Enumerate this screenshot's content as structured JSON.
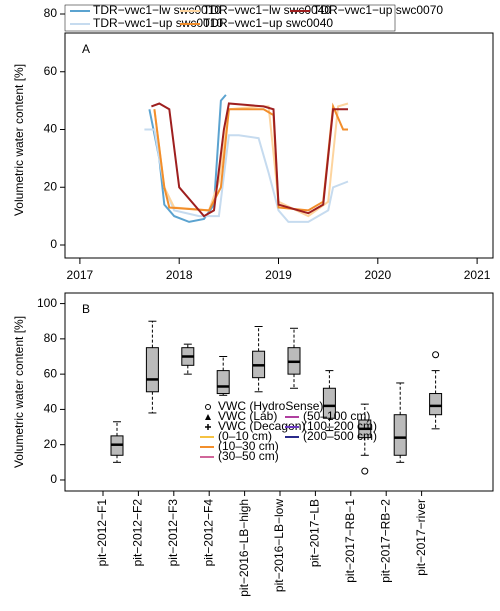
{
  "chart_data": [
    {
      "type": "line",
      "panel_label": "A",
      "y_label": "Volumetric water content [%]",
      "xlim": [
        2016.85,
        2021.16
      ],
      "xticks": [
        2017,
        2018,
        2019,
        2020,
        2021
      ],
      "ylim": [
        -4.5,
        80
      ],
      "yticks": [
        0,
        20,
        40,
        60,
        80
      ],
      "series": [
        {
          "name": "TDR−vwc1−lw swc0010",
          "color": "#5ba3d0",
          "x": [
            2017.7,
            2017.8,
            2017.85,
            2017.95,
            2018.1,
            2018.25,
            2018.35,
            2018.42,
            2018.47
          ],
          "values": [
            47,
            30,
            14,
            10,
            8,
            9,
            14,
            50,
            52
          ]
        },
        {
          "name": "TDR−vwc1−up swc0010",
          "color": "#c6dbef",
          "x": [
            2017.65,
            2017.75,
            2017.85,
            2017.95,
            2018.2,
            2018.4,
            2018.5,
            2018.6,
            2018.8,
            2018.9,
            2019.0,
            2019.1,
            2019.3,
            2019.5,
            2019.55,
            2019.7
          ],
          "values": [
            40,
            40,
            20,
            12,
            10,
            10,
            38,
            38,
            37,
            25,
            12,
            8,
            8,
            12,
            20,
            22
          ]
        },
        {
          "name": "TDR−vwc1−lw swc0040",
          "color": "#fdd49e",
          "x": [
            2017.75,
            2017.85,
            2017.95,
            2018.3,
            2018.4,
            2018.5,
            2018.8,
            2018.9,
            2019.0,
            2019.3,
            2019.5,
            2019.6,
            2019.7
          ],
          "values": [
            47,
            20,
            13,
            12,
            22,
            47,
            48,
            48,
            15,
            10,
            15,
            48,
            49
          ]
        },
        {
          "name": "TDR−vwc1−up swc0040",
          "color": "#f28e2b",
          "x": [
            2017.75,
            2017.85,
            2017.9,
            2018.3,
            2018.42,
            2018.5,
            2018.85,
            2018.95,
            2019.0,
            2019.3,
            2019.45,
            2019.55,
            2019.65,
            2019.7
          ],
          "values": [
            47,
            20,
            13,
            12,
            20,
            47,
            47,
            45,
            13,
            12,
            15,
            48,
            40,
            40
          ]
        },
        {
          "name": "TDR−vwc1−up swc0070",
          "color": "#9e1f1f",
          "x": [
            2017.72,
            2017.8,
            2017.9,
            2018.0,
            2018.25,
            2018.35,
            2018.45,
            2018.5,
            2018.85,
            2018.95,
            2019.0,
            2019.3,
            2019.45,
            2019.55,
            2019.7
          ],
          "values": [
            48,
            49,
            47,
            20,
            10,
            12,
            40,
            49,
            48,
            47,
            14,
            11,
            14,
            47,
            47
          ]
        }
      ]
    },
    {
      "type": "box",
      "panel_label": "B",
      "y_label": "Volumetric water content [%]",
      "ylim": [
        -6.25,
        106
      ],
      "yticks": [
        0,
        20,
        40,
        60,
        80,
        100
      ],
      "categories": [
        "pit−2012−F1",
        "pit−2012−F2",
        "pit−2012−F3",
        "pit−2012−F4",
        "pit−2016−LB−high",
        "pit−2016−LB−low",
        "pit−2017−LB",
        "pit−2017−RB−1",
        "pit−2017−RB−2",
        "pit−2017−river"
      ],
      "boxes": [
        {
          "whislo": 10,
          "q1": 14,
          "median": 20,
          "q3": 25,
          "whishi": 33,
          "fliers": []
        },
        {
          "whislo": 38,
          "q1": 50,
          "median": 57,
          "q3": 75,
          "whishi": 90,
          "fliers": []
        },
        {
          "whislo": 60,
          "q1": 65,
          "median": 70,
          "q3": 75,
          "whishi": 77,
          "fliers": []
        },
        {
          "whislo": 48,
          "q1": 49,
          "median": 53,
          "q3": 62,
          "whishi": 70,
          "fliers": []
        },
        {
          "whislo": 50,
          "q1": 58,
          "median": 65,
          "q3": 73,
          "whishi": 87,
          "fliers": []
        },
        {
          "whislo": 52,
          "q1": 60,
          "median": 67,
          "q3": 75,
          "whishi": 86,
          "fliers": []
        },
        {
          "whislo": 28,
          "q1": 35,
          "median": 42,
          "q3": 52,
          "whishi": 62,
          "fliers": []
        },
        {
          "whislo": 14,
          "q1": 24,
          "median": 29,
          "q3": 34,
          "whishi": 43,
          "fliers": [
            5
          ]
        },
        {
          "whislo": 10,
          "q1": 14,
          "median": 24,
          "q3": 37,
          "whishi": 55,
          "fliers": []
        },
        {
          "whislo": 29,
          "q1": 37,
          "median": 42,
          "q3": 49,
          "whishi": 62,
          "fliers": [
            71
          ]
        }
      ],
      "legend": [
        {
          "label": "VWC (HydroSense)",
          "symbol": "circle"
        },
        {
          "label": "VWC (Lab)",
          "symbol": "triangle"
        },
        {
          "label": "VWC (Decagon)",
          "symbol": "plus"
        },
        {
          "label": "(0–10 cm)",
          "color": "#f5c242"
        },
        {
          "label": "(10–30 cm)",
          "color": "#f28e2b"
        },
        {
          "label": "(30–50 cm)",
          "color": "#d0669a"
        },
        {
          "label": "(50–100 cm)",
          "color": "#b03fa0"
        },
        {
          "label": "(100–200 cm)",
          "color": "#6a3bc0"
        },
        {
          "label": "(200–500 cm)",
          "color": "#2a2a8a"
        }
      ]
    }
  ]
}
